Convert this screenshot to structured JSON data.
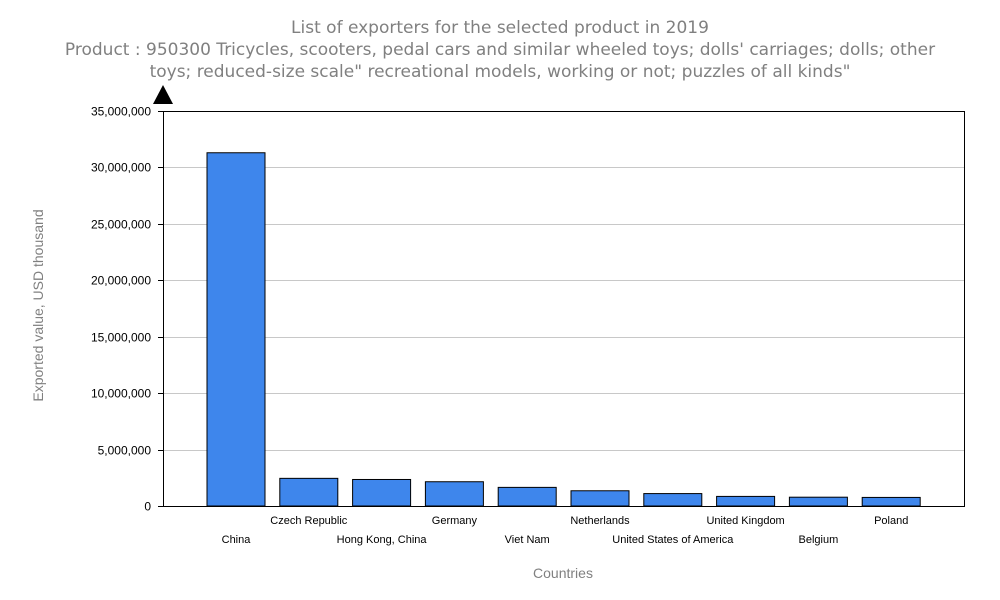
{
  "chart_data": {
    "type": "bar",
    "title": "List of exporters for the selected product in 2019",
    "subtitle_line1": "Product : 950300 Tricycles, scooters, pedal cars and similar wheeled toys; dolls' carriages; dolls; other",
    "subtitle_line2": "toys; reduced-size scale\" recreational models, working or not; puzzles of all kinds\"",
    "xlabel": "Countries",
    "ylabel": "Exported value, USD thousand",
    "ylim": [
      0,
      35000000
    ],
    "yticks": [
      0,
      5000000,
      10000000,
      15000000,
      20000000,
      25000000,
      30000000,
      35000000
    ],
    "ytick_labels": [
      "0",
      "5,000,000",
      "10,000,000",
      "15,000,000",
      "20,000,000",
      "25,000,000",
      "30,000,000",
      "35,000,000"
    ],
    "grid": true,
    "categories": [
      "China",
      "Czech Republic",
      "Hong Kong, China",
      "Germany",
      "Viet Nam",
      "Netherlands",
      "United States of America",
      "United Kingdom",
      "Belgium",
      "Poland"
    ],
    "values": [
      31300000,
      2450000,
      2350000,
      2150000,
      1650000,
      1350000,
      1100000,
      850000,
      780000,
      760000
    ],
    "bar_color": "#3e86ec"
  }
}
